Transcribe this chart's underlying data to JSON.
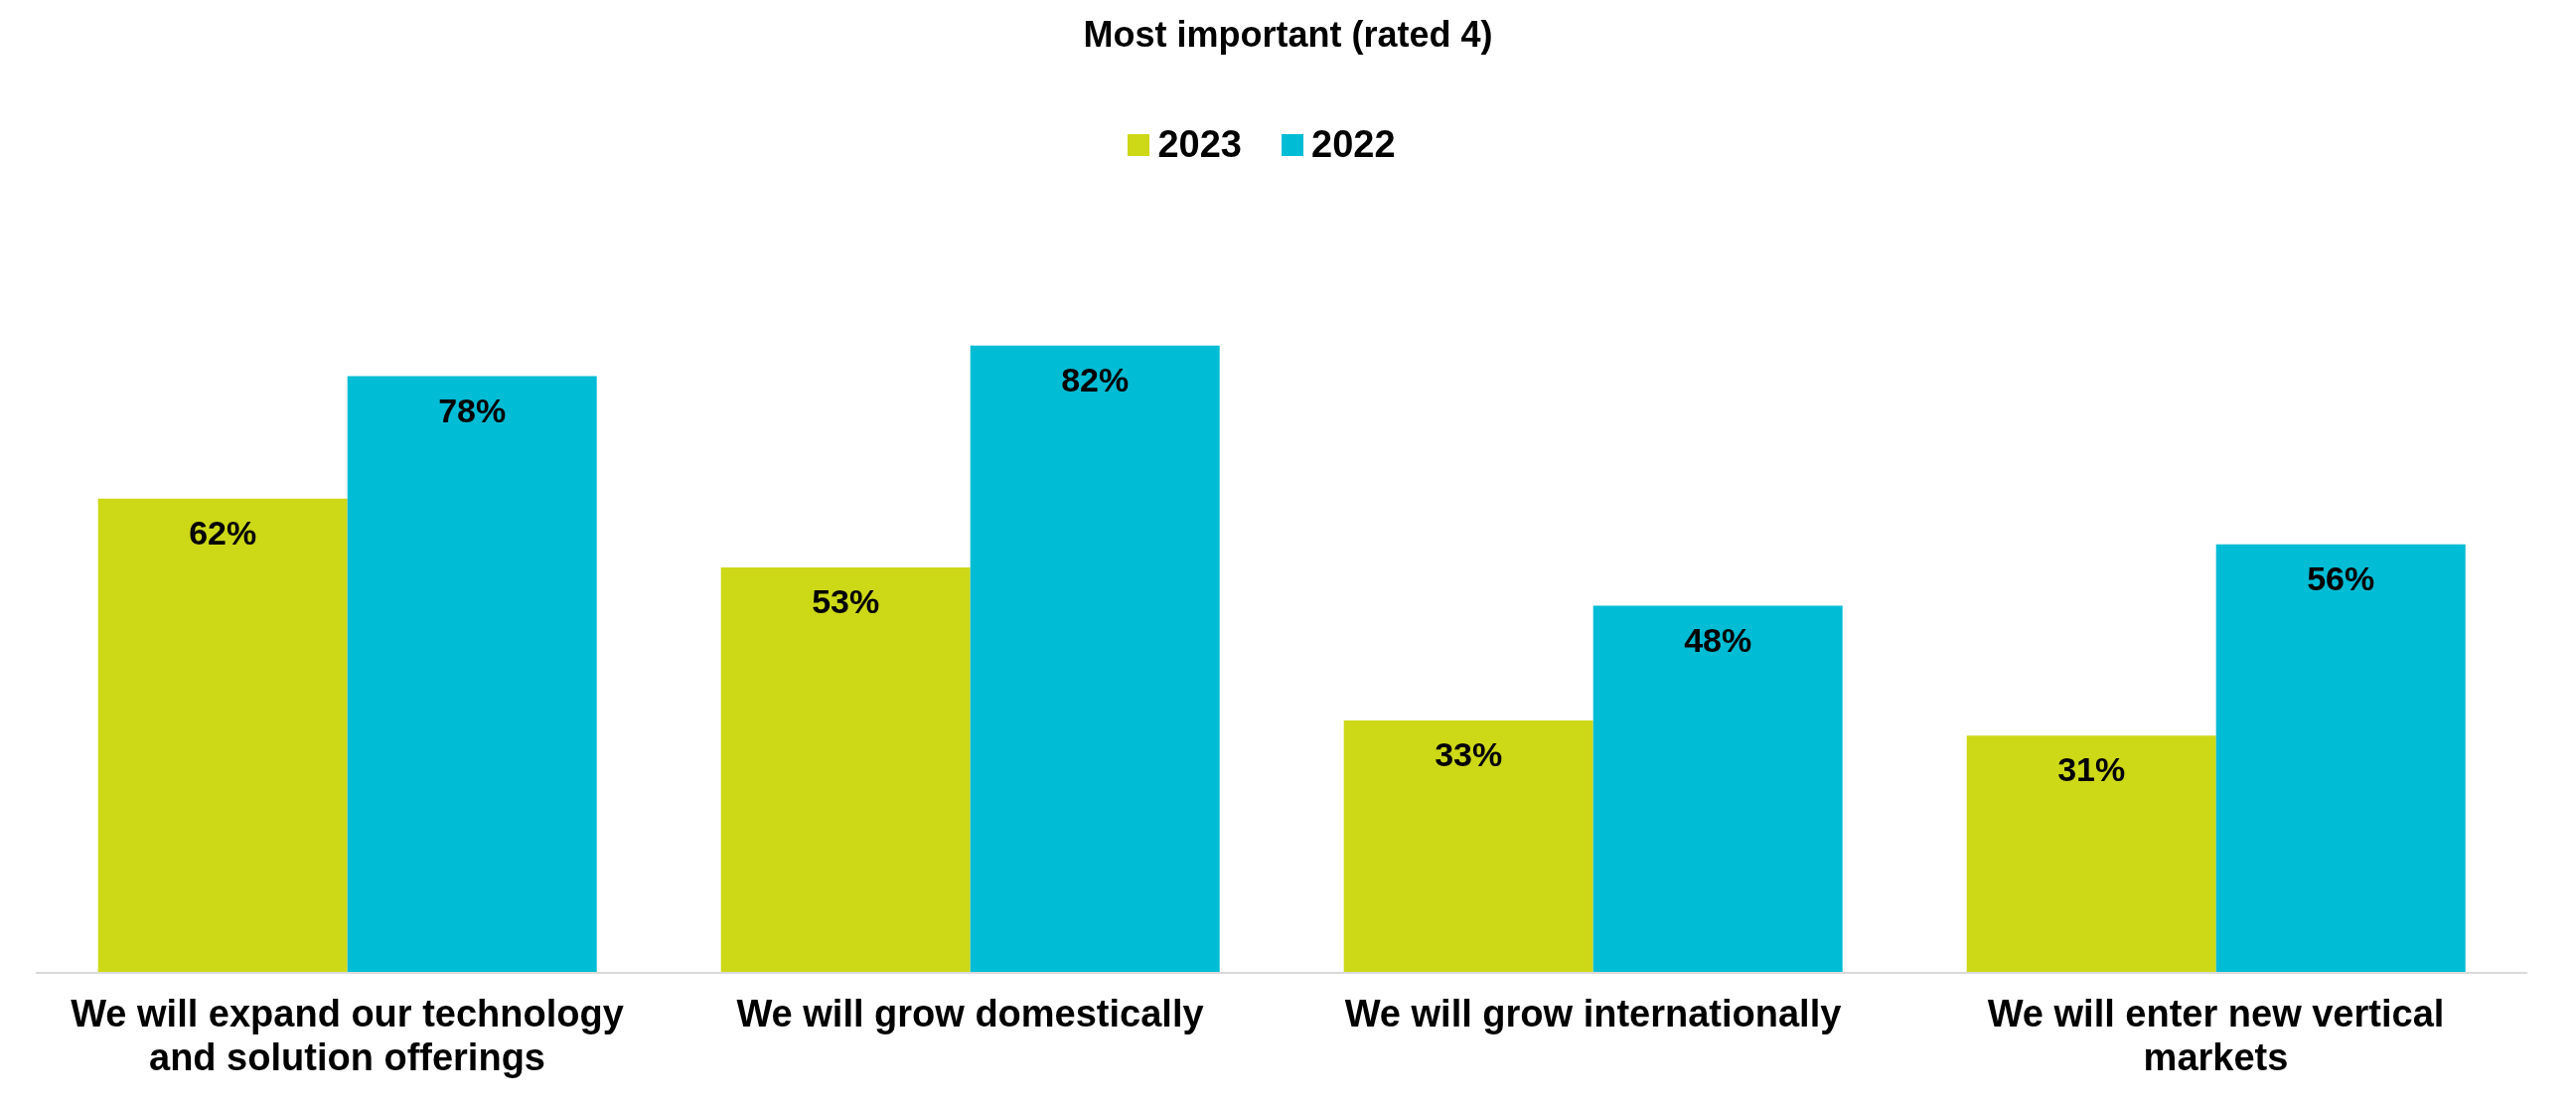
{
  "chart_data": {
    "type": "bar",
    "title": "Most important (rated 4)",
    "categories": [
      "We will expand our technology and solution offerings",
      "We will grow domestically",
      "We will grow internationally",
      "We will enter new vertical markets"
    ],
    "series": [
      {
        "name": "2023",
        "color": "#cdd817",
        "values": [
          62,
          53,
          33,
          31
        ],
        "value_labels": [
          "62%",
          "53%",
          "33%",
          "31%"
        ]
      },
      {
        "name": "2022",
        "color": "#00bcd4",
        "values": [
          78,
          82,
          48,
          56
        ],
        "value_labels": [
          "78%",
          "82%",
          "48%",
          "56%"
        ]
      }
    ],
    "legend": "top"
  }
}
